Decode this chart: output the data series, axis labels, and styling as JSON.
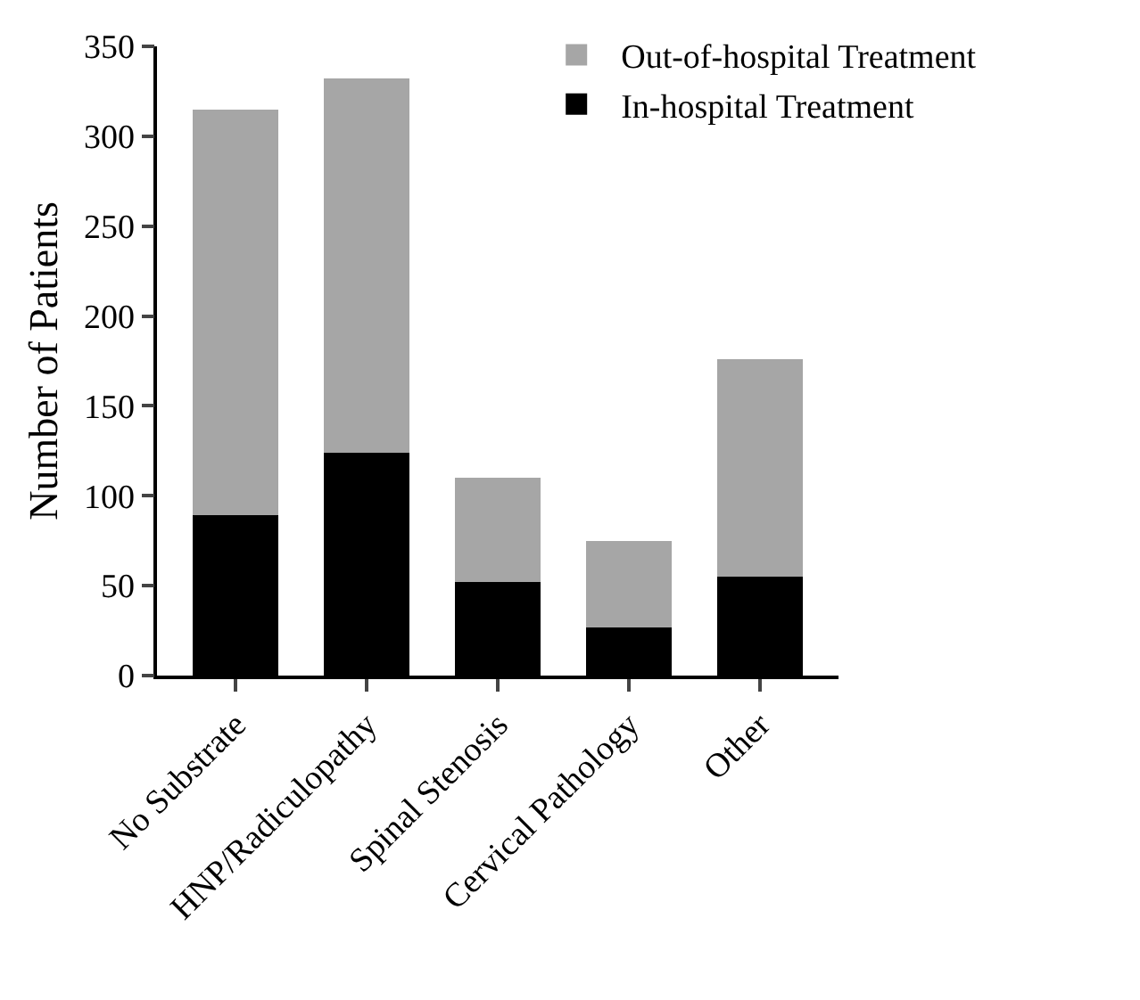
{
  "chart_data": {
    "type": "bar",
    "stacked": true,
    "ylabel": "Number of Patients",
    "categories": [
      "No Substrate",
      "HNP/Radiculopathy",
      "Spinal Stenosis",
      "Cervical Pathology",
      "Other"
    ],
    "series": [
      {
        "name": "In-hospital Treatment",
        "color": "#000000",
        "values": [
          89,
          124,
          52,
          27,
          55
        ]
      },
      {
        "name": "Out-of-hospital Treatment",
        "color": "#a6a6a6",
        "values": [
          226,
          208,
          58,
          48,
          121
        ]
      }
    ],
    "ylim": [
      0,
      350
    ],
    "yticks": [
      0,
      50,
      100,
      150,
      200,
      250,
      300,
      350
    ],
    "grid": false,
    "legend": "top right"
  }
}
